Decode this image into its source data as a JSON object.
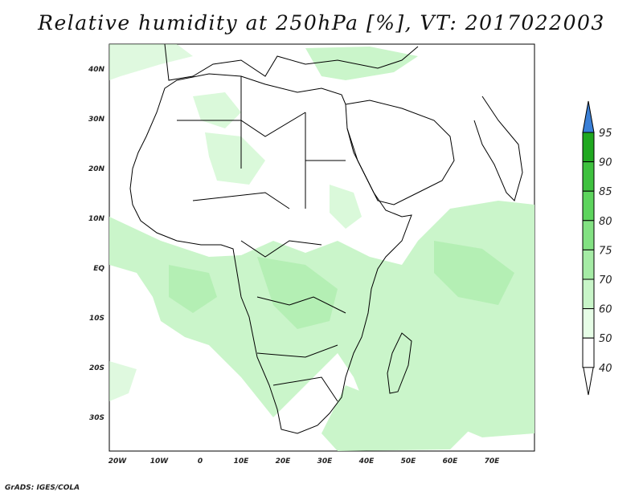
{
  "title": "Relative humidity at 250hPa [%], VT: 2017022003",
  "footer": "GrADS: IGES/COLA",
  "map": {
    "lat_ticks": [
      "40N",
      "30N",
      "20N",
      "10N",
      "EQ",
      "10S",
      "20S",
      "30S"
    ],
    "lon_ticks": [
      "20W",
      "10W",
      "0",
      "10E",
      "20E",
      "30E",
      "40E",
      "50E",
      "60E",
      "70E"
    ]
  },
  "colorbar": {
    "levels": [
      "40",
      "50",
      "60",
      "70",
      "75",
      "80",
      "85",
      "90",
      "95"
    ],
    "colors": [
      "#ffffff",
      "#e6fde6",
      "#c8f5c8",
      "#a5eba5",
      "#82e182",
      "#5dd45d",
      "#3ec13e",
      "#1fa81f",
      "#3a7fd6"
    ]
  }
}
